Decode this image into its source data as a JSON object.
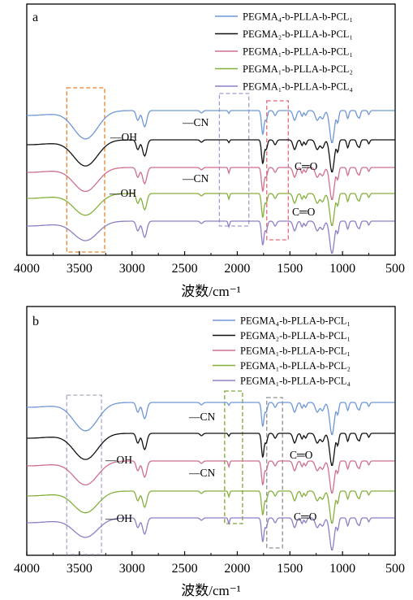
{
  "figure": {
    "xlabel": "波数/cm⁻¹"
  },
  "legend_labels": [
    "PEGMA₄-b-PLLA-b-PCL₁",
    "PEGMA₂-b-PLLA-b-PCL₁",
    "PEGMA₁-b-PLLA-b-PCL₁",
    "PEGMA₁-b-PLLA-b-PCL₂",
    "PEGMA₁-b-PLLA-b-PCL₄"
  ],
  "chart_data": [
    {
      "type": "line",
      "panel_label": "a",
      "xlabel": "波数/cm⁻¹",
      "ylabel": "",
      "xlim": [
        4000,
        500
      ],
      "x_reversed": true,
      "x_ticks": [
        4000,
        3500,
        3000,
        2500,
        2000,
        1500,
        1000,
        500
      ],
      "y_ticks_shown": false,
      "grid": false,
      "legend_position": "top-right",
      "series": [
        {
          "name": "PEGMA₄-b-PLLA-b-PCL₁",
          "color": "#6f97d6"
        },
        {
          "name": "PEGMA₂-b-PLLA-b-PCL₁",
          "color": "#111111"
        },
        {
          "name": "PEGMA₁-b-PLLA-b-PCL₁",
          "color": "#cf6f8f"
        },
        {
          "name": "PEGMA₁-b-PLLA-b-PCL₂",
          "color": "#86b03c"
        },
        {
          "name": "PEGMA₁-b-PLLA-b-PCL₄",
          "color": "#8d7fc7"
        }
      ],
      "annotations": [
        "—OH",
        "—CN",
        "—CN",
        "—OH",
        "C═O",
        "C═O"
      ],
      "highlight_boxes": [
        {
          "x_range": [
            3620,
            3260
          ],
          "color": "#e8832a"
        },
        {
          "x_range": [
            2170,
            1890
          ],
          "color": "#a49ad6"
        },
        {
          "x_range": [
            1720,
            1515
          ],
          "color": "#e66a7a"
        }
      ]
    },
    {
      "type": "line",
      "panel_label": "b",
      "xlabel": "波数/cm⁻¹",
      "ylabel": "",
      "xlim": [
        4000,
        500
      ],
      "x_reversed": true,
      "x_ticks": [
        4000,
        3500,
        3000,
        2500,
        2000,
        1500,
        1000,
        500
      ],
      "y_ticks_shown": false,
      "grid": false,
      "legend_position": "top-right",
      "series": [
        {
          "name": "PEGMA₄-b-PLLA-b-PCL₁",
          "color": "#6f97d6"
        },
        {
          "name": "PEGMA₂-b-PLLA-b-PCL₁",
          "color": "#111111"
        },
        {
          "name": "PEGMA₁-b-PLLA-b-PCL₁",
          "color": "#cf6f8f"
        },
        {
          "name": "PEGMA₁-b-PLLA-b-PCL₂",
          "color": "#86b03c"
        },
        {
          "name": "PEGMA₁-b-PLLA-b-PCL₄",
          "color": "#8d7fc7"
        }
      ],
      "annotations": [
        "—CN",
        "—OH",
        "—CN",
        "C═O",
        "—OH",
        "C═O"
      ],
      "highlight_boxes": [
        {
          "x_range": [
            3620,
            3290
          ],
          "color": "#a9a9c6"
        },
        {
          "x_range": [
            2120,
            1950
          ],
          "color": "#78a83a"
        },
        {
          "x_range": [
            1720,
            1570
          ],
          "color": "#909090"
        }
      ]
    }
  ]
}
